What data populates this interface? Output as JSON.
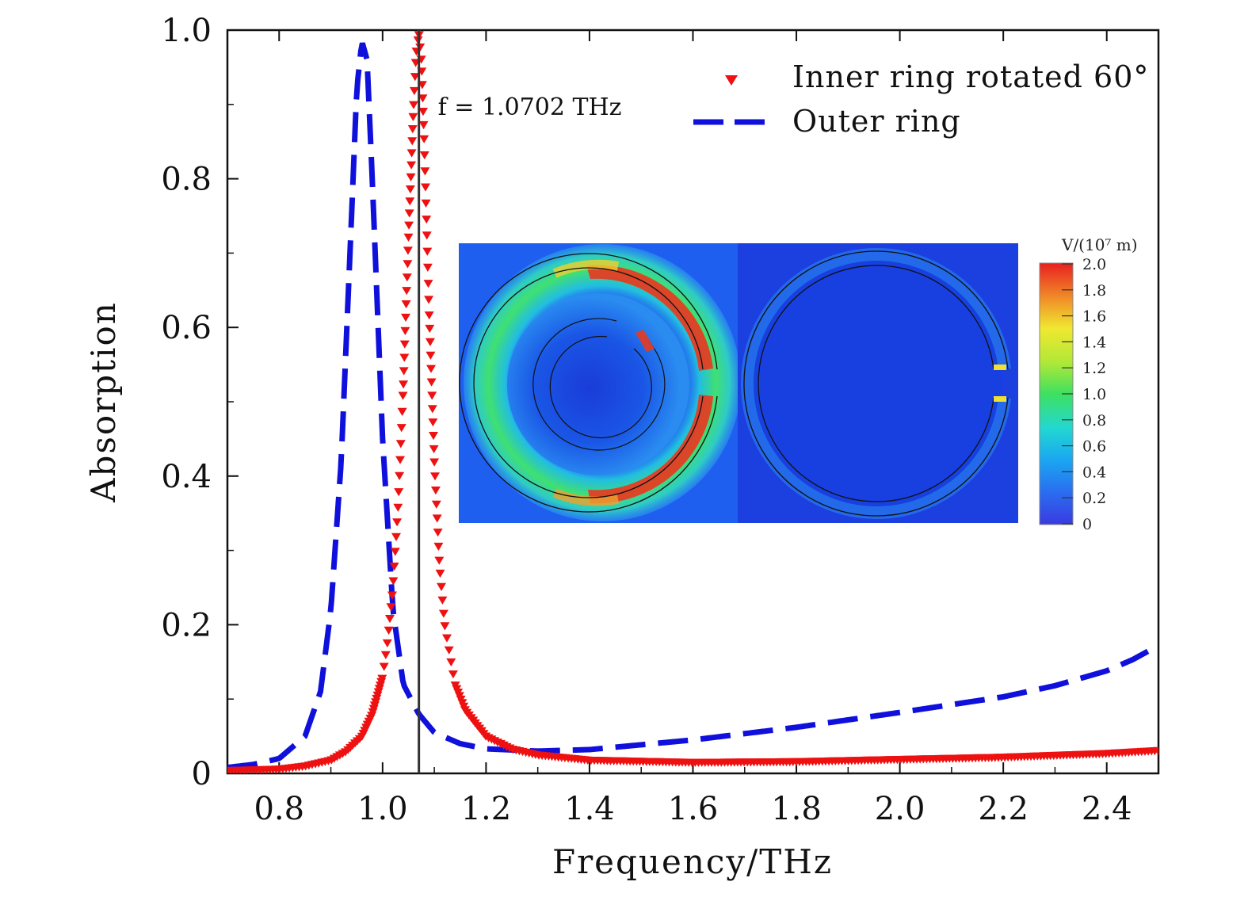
{
  "chart_data": {
    "type": "line",
    "title": "",
    "xlabel": "Frequency/THz",
    "ylabel": "Absorption",
    "xlim": [
      0.7,
      2.5
    ],
    "ylim": [
      0,
      1.0
    ],
    "xticks": [
      0.8,
      1.0,
      1.2,
      1.4,
      1.6,
      1.8,
      2.0,
      2.2,
      2.4
    ],
    "xtick_labels": [
      "0.8",
      "1.0",
      "1.2",
      "1.4",
      "1.6",
      "1.8",
      "2.0",
      "2.2",
      "2.4"
    ],
    "yticks": [
      0,
      0.2,
      0.4,
      0.6,
      0.8,
      1.0
    ],
    "ytick_labels": [
      "0",
      "0.2",
      "0.4",
      "0.6",
      "0.8",
      "1.0"
    ],
    "grid": false,
    "legend_position": "top-right",
    "series": [
      {
        "name": "Inner ring rotated 60°",
        "style": "triangle-markers",
        "color": "#ee1111",
        "x": [
          0.7,
          0.8,
          0.85,
          0.9,
          0.93,
          0.96,
          0.98,
          1.0,
          1.01,
          1.02,
          1.03,
          1.04,
          1.05,
          1.06,
          1.065,
          1.0702,
          1.075,
          1.08,
          1.09,
          1.1,
          1.11,
          1.12,
          1.14,
          1.16,
          1.2,
          1.25,
          1.3,
          1.4,
          1.6,
          1.8,
          2.0,
          2.2,
          2.4,
          2.5
        ],
        "y": [
          0.004,
          0.006,
          0.01,
          0.018,
          0.03,
          0.05,
          0.08,
          0.13,
          0.18,
          0.25,
          0.36,
          0.52,
          0.72,
          0.9,
          0.97,
          0.995,
          0.96,
          0.86,
          0.62,
          0.42,
          0.28,
          0.2,
          0.12,
          0.085,
          0.05,
          0.033,
          0.025,
          0.018,
          0.015,
          0.016,
          0.019,
          0.022,
          0.027,
          0.031
        ]
      },
      {
        "name": "Outer ring",
        "style": "dashed",
        "color": "#1010dd",
        "x": [
          0.7,
          0.75,
          0.8,
          0.85,
          0.88,
          0.9,
          0.92,
          0.94,
          0.95,
          0.96,
          0.97,
          0.98,
          1.0,
          1.02,
          1.04,
          1.07,
          1.1,
          1.15,
          1.2,
          1.3,
          1.4,
          1.6,
          1.8,
          2.0,
          2.2,
          2.3,
          2.4,
          2.45,
          2.5
        ],
        "y": [
          0.008,
          0.012,
          0.02,
          0.05,
          0.11,
          0.22,
          0.42,
          0.75,
          0.92,
          0.985,
          0.96,
          0.8,
          0.45,
          0.22,
          0.12,
          0.08,
          0.055,
          0.04,
          0.033,
          0.03,
          0.032,
          0.045,
          0.062,
          0.082,
          0.103,
          0.118,
          0.138,
          0.153,
          0.172
        ]
      }
    ],
    "annotations": [
      {
        "type": "vertical-line",
        "x": 1.0702,
        "color": "#333333"
      },
      {
        "type": "text",
        "text": "f = 1.0702 THz",
        "x": 1.0702,
        "y": 0.9
      }
    ],
    "inset": {
      "description_panels": [
        "field map with inner ring rotated 60°",
        "field map of outer ring only"
      ],
      "colorbar": {
        "title": "V/(10⁷ m)",
        "range": [
          0,
          2.0
        ],
        "tick_labels": [
          "2.0",
          "1.8",
          "1.6",
          "1.4",
          "1.2",
          "1.0",
          "0.8",
          "0.6",
          "0.4",
          "0.2",
          "0"
        ],
        "colormap": "jet"
      }
    }
  }
}
